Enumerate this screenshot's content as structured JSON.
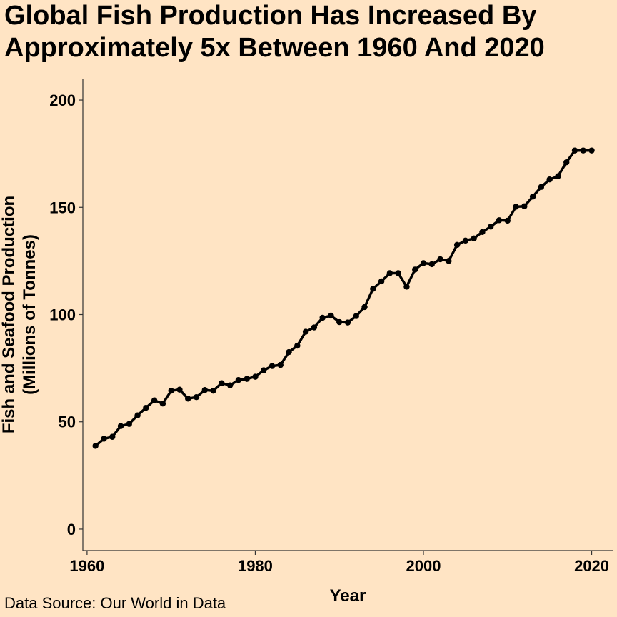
{
  "title_line1": "Global Fish Production Has Increased By",
  "title_line2": "Approximately 5x Between 1960 And 2020",
  "caption": "Data Source: Our World in Data",
  "chart_data": {
    "type": "line",
    "xlabel": "Year",
    "ylabel_line1": "Fish and Seafood Production",
    "ylabel_line2": "(Millions of Tonnes)",
    "xlim": [
      1959.5,
      2022.5
    ],
    "ylim": [
      -10,
      210
    ],
    "xticks": [
      1960,
      1980,
      2000,
      2020
    ],
    "yticks": [
      0,
      50,
      100,
      150,
      200
    ],
    "grid": false,
    "legend": "none",
    "color": "#000000",
    "x": [
      1961,
      1962,
      1963,
      1964,
      1965,
      1966,
      1967,
      1968,
      1969,
      1970,
      1971,
      1972,
      1973,
      1974,
      1975,
      1976,
      1977,
      1978,
      1979,
      1980,
      1981,
      1982,
      1983,
      1984,
      1985,
      1986,
      1987,
      1988,
      1989,
      1990,
      1991,
      1992,
      1993,
      1994,
      1995,
      1996,
      1997,
      1998,
      1999,
      2000,
      2001,
      2002,
      2003,
      2004,
      2005,
      2006,
      2007,
      2008,
      2009,
      2010,
      2011,
      2012,
      2013,
      2014,
      2015,
      2016,
      2017,
      2018,
      2019,
      2020
    ],
    "y": [
      38.8,
      42.1,
      43.0,
      48.0,
      49.0,
      53.0,
      56.5,
      60.0,
      58.5,
      64.5,
      65.0,
      60.8,
      61.5,
      64.8,
      64.5,
      68.0,
      67.0,
      69.5,
      70.0,
      71.0,
      74.0,
      76.0,
      76.5,
      82.5,
      85.5,
      92.0,
      94.0,
      98.5,
      99.5,
      96.5,
      96.3,
      99.3,
      103.5,
      112.0,
      115.5,
      119.3,
      119.3,
      113.0,
      121.0,
      124.0,
      123.5,
      125.8,
      125.0,
      132.5,
      134.5,
      135.5,
      138.5,
      141.0,
      144.0,
      143.8,
      150.3,
      150.5,
      155.0,
      159.5,
      163.0,
      164.5,
      171.0,
      176.5,
      176.5,
      176.5
    ]
  }
}
